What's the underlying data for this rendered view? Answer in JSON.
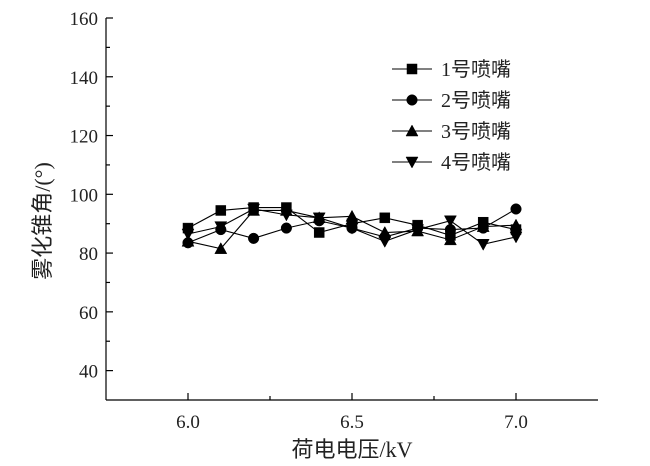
{
  "chart_data": {
    "type": "line",
    "title": "",
    "xlabel": "荷电电压/kV",
    "ylabel": "雾化锥角/(°)",
    "xlim": [
      5.75,
      7.25
    ],
    "ylim": [
      30,
      160
    ],
    "xticks": [
      6.0,
      6.5,
      7.0
    ],
    "xtick_labels": [
      "6.0",
      "6.5",
      "7.0"
    ],
    "yticks": [
      40,
      60,
      80,
      100,
      120,
      140,
      160
    ],
    "ytick_labels": [
      "40",
      "60",
      "80",
      "100",
      "120",
      "140",
      "160"
    ],
    "grid": false,
    "legend_position": "top-right",
    "x": [
      6.0,
      6.1,
      6.2,
      6.3,
      6.4,
      6.5,
      6.6,
      6.7,
      6.8,
      6.9,
      7.0
    ],
    "series": [
      {
        "name": "1号喷嘴",
        "marker": "square",
        "values": [
          88.5,
          94.5,
          95.5,
          95.5,
          87,
          90,
          92,
          89.5,
          86,
          90.5,
          88
        ]
      },
      {
        "name": "2号喷嘴",
        "marker": "circle",
        "values": [
          83.5,
          88,
          85,
          88.5,
          91,
          88.5,
          85.5,
          88.5,
          88,
          88.5,
          95
        ]
      },
      {
        "name": "3号喷嘴",
        "marker": "triangle-up",
        "values": [
          84,
          81.5,
          94.5,
          94.5,
          92,
          92.5,
          87,
          87.5,
          84.5,
          89,
          89.5
        ]
      },
      {
        "name": "4号喷嘴",
        "marker": "triangle-down",
        "values": [
          86.5,
          89,
          95,
          93,
          92,
          88.5,
          84,
          88,
          91,
          83,
          85.5
        ]
      }
    ]
  }
}
